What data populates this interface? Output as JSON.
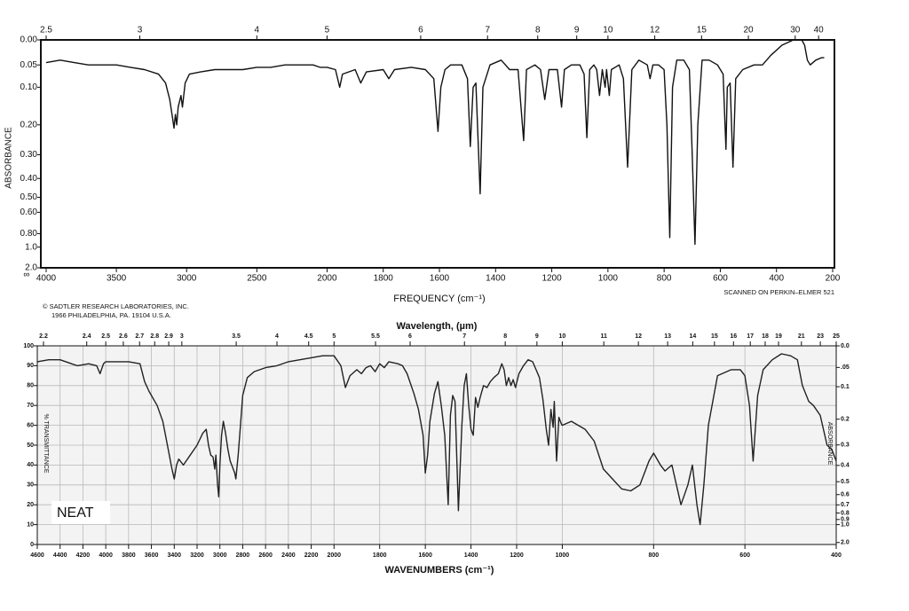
{
  "chart_data": [
    {
      "type": "line",
      "ylabel": "ABSORBANCE",
      "xlabel": "FREQUENCY (cm⁻¹)",
      "annotations": [
        "© SADTLER RESEARCH LABORATORIES, INC.",
        "1966 PHILADELPHIA, PA.   19104   U.S.A.",
        "SCANNED ON PERKIN–ELMER   521",
        "∞"
      ],
      "yscale": "absorbance",
      "xbreaks": [
        2000
      ],
      "grid": false,
      "color": "#111111",
      "xlim": [
        4000,
        200
      ],
      "xticks": [
        4000,
        3500,
        3000,
        2500,
        2000,
        1800,
        1600,
        1400,
        1200,
        1000,
        800,
        600,
        400,
        200
      ],
      "x2ticks": [
        2.5,
        3,
        4,
        5,
        6,
        7,
        8,
        9,
        10,
        12,
        15,
        20,
        30,
        40
      ],
      "ylim": [
        0,
        2
      ],
      "yticks": [
        {
          "value": 0,
          "label": "0.00"
        },
        {
          "value": 0.05,
          "label": "0.05"
        },
        {
          "value": 0.1,
          "label": "0.10"
        },
        {
          "value": 0.2,
          "label": "0.20"
        },
        {
          "value": 0.3,
          "label": "0.30"
        },
        {
          "value": 0.4,
          "label": "0.40"
        },
        {
          "value": 0.5,
          "label": "0.50"
        },
        {
          "value": 0.6,
          "label": "0.60"
        },
        {
          "value": 0.8,
          "label": "0.80"
        },
        {
          "value": 1,
          "label": "1.0"
        },
        {
          "value": 2,
          "label": "2.0"
        }
      ],
      "x": [
        4000,
        3900,
        3800,
        3700,
        3600,
        3500,
        3400,
        3300,
        3200,
        3150,
        3120,
        3100,
        3090,
        3080,
        3070,
        3060,
        3040,
        3030,
        3010,
        2980,
        2900,
        2800,
        2700,
        2600,
        2500,
        2400,
        2300,
        2200,
        2100,
        2050,
        2000,
        1970,
        1955,
        1945,
        1900,
        1880,
        1860,
        1800,
        1780,
        1760,
        1700,
        1650,
        1620,
        1605,
        1595,
        1580,
        1560,
        1520,
        1500,
        1490,
        1480,
        1470,
        1455,
        1445,
        1420,
        1380,
        1350,
        1320,
        1300,
        1290,
        1260,
        1240,
        1225,
        1210,
        1180,
        1165,
        1155,
        1130,
        1100,
        1085,
        1075,
        1065,
        1050,
        1040,
        1030,
        1020,
        1010,
        1005,
        995,
        988,
        960,
        945,
        930,
        915,
        890,
        860,
        850,
        840,
        820,
        800,
        790,
        780,
        770,
        755,
        730,
        710,
        700,
        690,
        680,
        665,
        640,
        610,
        590,
        580,
        575,
        565,
        555,
        545,
        520,
        480,
        450,
        420,
        380,
        340,
        310,
        300,
        290,
        280,
        260,
        240,
        230
      ],
      "values": [
        0.045,
        0.04,
        0.045,
        0.05,
        0.05,
        0.05,
        0.055,
        0.06,
        0.07,
        0.09,
        0.13,
        0.18,
        0.21,
        0.17,
        0.2,
        0.15,
        0.12,
        0.15,
        0.09,
        0.07,
        0.065,
        0.06,
        0.06,
        0.06,
        0.055,
        0.055,
        0.05,
        0.05,
        0.05,
        0.055,
        0.055,
        0.06,
        0.1,
        0.07,
        0.06,
        0.09,
        0.065,
        0.06,
        0.08,
        0.06,
        0.055,
        0.06,
        0.08,
        0.22,
        0.1,
        0.06,
        0.05,
        0.05,
        0.08,
        0.27,
        0.1,
        0.09,
        0.48,
        0.1,
        0.05,
        0.04,
        0.06,
        0.06,
        0.25,
        0.06,
        0.05,
        0.06,
        0.13,
        0.06,
        0.06,
        0.15,
        0.06,
        0.05,
        0.05,
        0.07,
        0.24,
        0.06,
        0.05,
        0.06,
        0.12,
        0.06,
        0.1,
        0.06,
        0.12,
        0.06,
        0.05,
        0.08,
        0.35,
        0.06,
        0.04,
        0.05,
        0.08,
        0.05,
        0.05,
        0.06,
        0.2,
        0.85,
        0.1,
        0.04,
        0.04,
        0.06,
        0.3,
        0.95,
        0.2,
        0.04,
        0.04,
        0.05,
        0.07,
        0.28,
        0.1,
        0.09,
        0.35,
        0.08,
        0.06,
        0.05,
        0.05,
        0.03,
        0.01,
        0,
        0,
        0.01,
        0.04,
        0.05,
        0.04,
        0.035,
        0.035
      ]
    },
    {
      "type": "line",
      "x2label": "Wavelength, (µm)",
      "xlabel": "WAVENUMBERS (cm⁻¹)",
      "ylabel": "% TRANSMITTANCE",
      "y2label": "ABSORBANCE",
      "annotations": [
        "NEAT"
      ],
      "y2scale": "absorbance",
      "xbreaks": [
        2000,
        1000
      ],
      "grid": true,
      "color": "#222222",
      "xlim": [
        4600,
        400
      ],
      "xticks": [
        4600,
        4400,
        4200,
        4000,
        3800,
        3600,
        3400,
        3200,
        3000,
        2800,
        2600,
        2400,
        2200,
        2000,
        1800,
        1600,
        1400,
        1200,
        1000,
        800,
        600,
        400
      ],
      "x2ticks": [
        2.2,
        2.4,
        2.5,
        2.6,
        2.7,
        2.8,
        2.9,
        3,
        3.5,
        4,
        4.5,
        5,
        5.5,
        6,
        7,
        8,
        9,
        10,
        11,
        12,
        13,
        14,
        15,
        16,
        17,
        18,
        19,
        21,
        23,
        25
      ],
      "ylim": [
        0,
        100
      ],
      "yticks": [
        0,
        10,
        20,
        30,
        40,
        50,
        60,
        70,
        80,
        90,
        100
      ],
      "y2ticks": [
        {
          "value": 0,
          "label": "0.0"
        },
        {
          "value": 0.05,
          "label": ".05"
        },
        {
          "value": 0.1,
          "label": "0.1"
        },
        {
          "value": 0.2,
          "label": "0.2"
        },
        {
          "value": 0.3,
          "label": "0.3"
        },
        {
          "value": 0.4,
          "label": "0.4"
        },
        {
          "value": 0.5,
          "label": "0.5"
        },
        {
          "value": 0.6,
          "label": "0.6"
        },
        {
          "value": 0.7,
          "label": "0.7"
        },
        {
          "value": 0.8,
          "label": "0.8"
        },
        {
          "value": 0.9,
          "label": "0.9"
        },
        {
          "value": 1,
          "label": "1.0"
        },
        {
          "value": 2,
          "label": "2.0"
        }
      ],
      "x": [
        4600,
        4500,
        4400,
        4300,
        4250,
        4150,
        4080,
        4050,
        4020,
        4000,
        3800,
        3700,
        3660,
        3620,
        3550,
        3500,
        3460,
        3420,
        3400,
        3380,
        3360,
        3320,
        3260,
        3200,
        3150,
        3120,
        3100,
        3080,
        3060,
        3045,
        3035,
        3020,
        3010,
        3000,
        2985,
        2970,
        2950,
        2930,
        2910,
        2890,
        2870,
        2860,
        2840,
        2820,
        2800,
        2760,
        2700,
        2600,
        2500,
        2400,
        2300,
        2200,
        2100,
        2000,
        1970,
        1950,
        1930,
        1900,
        1880,
        1860,
        1840,
        1820,
        1800,
        1780,
        1760,
        1720,
        1700,
        1680,
        1650,
        1630,
        1610,
        1600,
        1590,
        1580,
        1560,
        1545,
        1530,
        1515,
        1500,
        1490,
        1480,
        1470,
        1455,
        1440,
        1430,
        1420,
        1410,
        1400,
        1390,
        1380,
        1370,
        1360,
        1345,
        1330,
        1315,
        1300,
        1280,
        1265,
        1255,
        1245,
        1235,
        1225,
        1215,
        1205,
        1190,
        1170,
        1150,
        1130,
        1115,
        1100,
        1085,
        1070,
        1060,
        1050,
        1040,
        1035,
        1025,
        1015,
        1005,
        1000,
        980,
        950,
        930,
        910,
        890,
        870,
        850,
        830,
        810,
        800,
        785,
        775,
        760,
        740,
        725,
        715,
        705,
        698,
        690,
        680,
        660,
        630,
        610,
        600,
        590,
        582,
        572,
        560,
        540,
        520,
        500,
        485,
        474,
        460,
        450,
        435,
        420,
        410,
        400
      ],
      "values": [
        92,
        93,
        93,
        91,
        90,
        91,
        90,
        86,
        91,
        92,
        92,
        91,
        82,
        77,
        70,
        62,
        50,
        38,
        33,
        40,
        43,
        40,
        45,
        50,
        56,
        58,
        50,
        45,
        44,
        38,
        45,
        30,
        24,
        40,
        55,
        62,
        56,
        48,
        42,
        39,
        36,
        33,
        45,
        60,
        75,
        84,
        87,
        89,
        90,
        92,
        93,
        94,
        95,
        95,
        90,
        79,
        85,
        88,
        86,
        89,
        90,
        87,
        91,
        89,
        92,
        91,
        90,
        86,
        76,
        68,
        55,
        36,
        45,
        62,
        76,
        82,
        70,
        55,
        20,
        65,
        75,
        72,
        17,
        60,
        80,
        86,
        70,
        58,
        55,
        74,
        69,
        74,
        80,
        79,
        82,
        84,
        86,
        91,
        88,
        80,
        84,
        80,
        83,
        79,
        86,
        90,
        93,
        92,
        88,
        84,
        73,
        58,
        50,
        68,
        59,
        72,
        42,
        64,
        61,
        60,
        62,
        58,
        52,
        38,
        33,
        28,
        27,
        30,
        42,
        46,
        40,
        37,
        40,
        20,
        30,
        40,
        20,
        10,
        30,
        60,
        85,
        88,
        88,
        85,
        70,
        42,
        75,
        88,
        93,
        96,
        95,
        93,
        80,
        72,
        70,
        65,
        50,
        48,
        42
      ]
    }
  ]
}
